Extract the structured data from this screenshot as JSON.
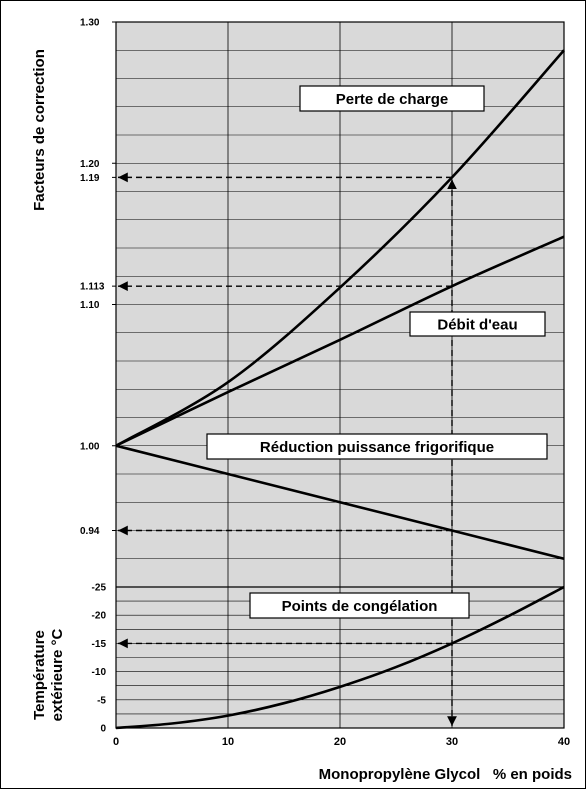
{
  "chart_data": {
    "type": "line",
    "xlabel": "Monopropylène Glycol   % en poids",
    "ylabel_top": "Facteurs de correction",
    "ylabel_bottom": [
      "Température",
      "extérieure °C"
    ],
    "x_ticks": [
      "0",
      "10",
      "20",
      "30",
      "40"
    ],
    "x_range": [
      0,
      40
    ],
    "top_axis": {
      "range": [
        0.9,
        1.3
      ],
      "tick_values": [
        1.3,
        1.2,
        1.19,
        1.113,
        1.1,
        1.0,
        0.94
      ],
      "tick_labels": [
        "1.30",
        "1.20",
        "1.19",
        "1.113",
        "1.10",
        "1.00",
        "0.94"
      ]
    },
    "bottom_axis": {
      "range": [
        0,
        -25
      ],
      "tick_values": [
        -25,
        -20,
        -15,
        -10,
        -5,
        0
      ],
      "tick_labels": [
        "-25",
        "-20",
        "-15",
        "-10",
        "-5",
        "0"
      ]
    },
    "grid": true,
    "series": [
      {
        "name": "Perte de charge",
        "axis": "top",
        "x": [
          0,
          10,
          20,
          30,
          40
        ],
        "y": [
          1.0,
          1.045,
          1.112,
          1.19,
          1.28
        ]
      },
      {
        "name": "Débit d'eau",
        "axis": "top",
        "x": [
          0,
          10,
          20,
          30,
          40
        ],
        "y": [
          1.0,
          1.038,
          1.075,
          1.113,
          1.148
        ]
      },
      {
        "name": "Réduction puissance frigorifique",
        "axis": "top",
        "x": [
          0,
          10,
          20,
          30,
          40
        ],
        "y": [
          1.0,
          0.98,
          0.96,
          0.94,
          0.92
        ]
      },
      {
        "name": "Points de congélation",
        "axis": "bottom",
        "x": [
          0,
          5,
          10,
          15,
          20,
          25,
          30,
          35,
          40
        ],
        "y": [
          0,
          -0.8,
          -2.2,
          -4.4,
          -7.3,
          -10.8,
          -15,
          -19.8,
          -25
        ]
      }
    ],
    "annotations": [
      {
        "text": "Perte de charge"
      },
      {
        "text": "Débit d'eau"
      },
      {
        "text": "Réduction puissance frigorifique"
      },
      {
        "text": "Points de congélation"
      }
    ],
    "readout_x": 30,
    "readouts": [
      {
        "axis": "top",
        "y": 1.19
      },
      {
        "axis": "top",
        "y": 1.113
      },
      {
        "axis": "top",
        "y": 0.94
      },
      {
        "axis": "bottom",
        "y": -15
      }
    ],
    "colors": {
      "plot_background": "#d9d9d9",
      "line": "#000000",
      "box": "#ffffff"
    }
  }
}
